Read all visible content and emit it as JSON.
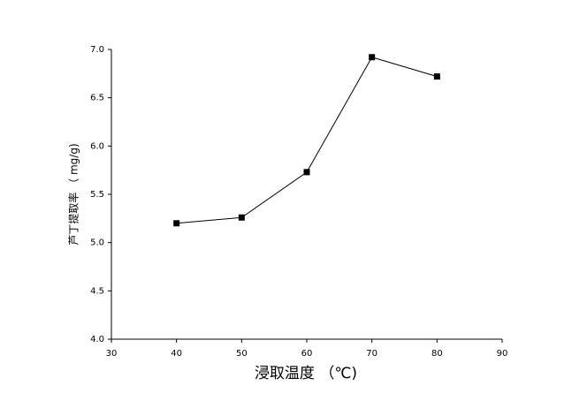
{
  "chart_data": {
    "type": "line",
    "xlabel": "浸取温度 （℃)",
    "ylabel": "芦丁提取率 （ mg/g)",
    "x": [
      40,
      50,
      60,
      70,
      80
    ],
    "series": [
      {
        "color": "#000000",
        "values": [
          5.2,
          5.26,
          5.73,
          6.92,
          6.72
        ]
      }
    ],
    "xlim": [
      30,
      90
    ],
    "xticks": [
      30,
      40,
      50,
      60,
      70,
      80,
      90
    ],
    "ylim": [
      4,
      7
    ],
    "yticks": [
      {
        "value": 4,
        "label": "4.0"
      },
      4.5,
      {
        "value": 5,
        "label": "5.0"
      },
      5.5,
      {
        "value": 6,
        "label": "6.0"
      },
      6.5,
      {
        "value": 7,
        "label": "7.0"
      }
    ],
    "grid": false
  }
}
